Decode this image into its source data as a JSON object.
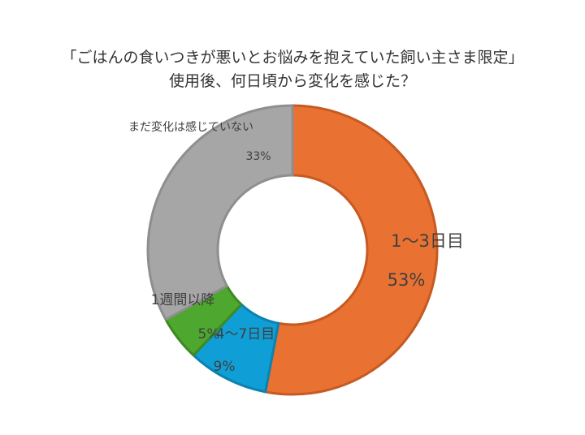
{
  "chart_data": {
    "type": "pie",
    "title_lines": [
      "「ごはんの食いつきが悪いとお悩みを抱えていた飼い主さま限定」",
      "使用後、何日頃から変化を感じた？"
    ],
    "categories": [
      "1～3日目",
      "4～7日目",
      "1週間以降",
      "まだ変化は感じていない"
    ],
    "values": [
      53,
      9,
      5,
      33
    ],
    "value_labels": [
      "53%",
      "9%",
      "5%",
      "33%"
    ],
    "display_labels": [
      "1～3日目",
      "4～7日目",
      "1週間以降",
      "まだ変化は感じていない"
    ],
    "colors": [
      "#E97132",
      "#0F9ED5",
      "#4EA72E",
      "#A6A6A6"
    ],
    "stroke_colors": [
      "#C55A22",
      "#0B82B0",
      "#3C8A22",
      "#8E8E8E"
    ],
    "donut": true
  }
}
